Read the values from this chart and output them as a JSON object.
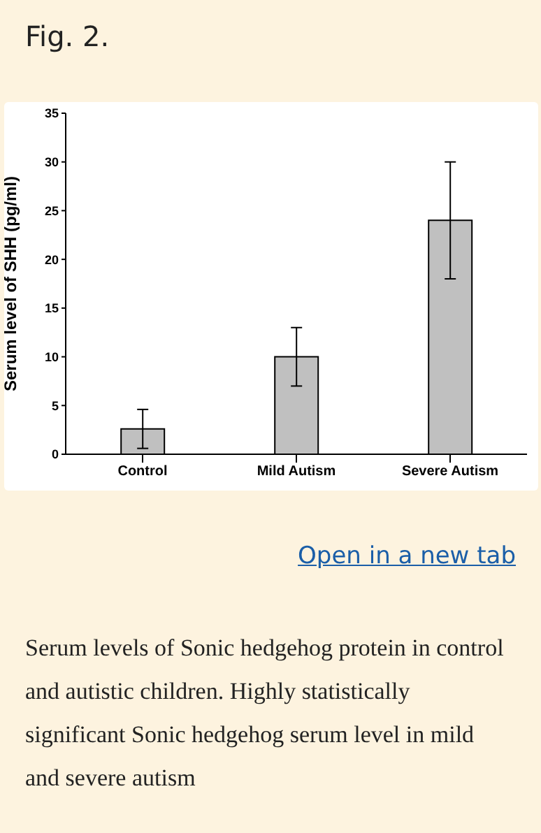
{
  "chart_data": {
    "type": "bar",
    "title": "Fig. 2.",
    "ylabel": "Serum level of SHH (pg/ml)",
    "categories": [
      "Control",
      "Mild Autism",
      "Severe Autism"
    ],
    "values": [
      2.6,
      10,
      24
    ],
    "errors": [
      [
        0.6,
        4.6
      ],
      [
        7,
        13
      ],
      [
        18,
        30
      ]
    ],
    "color": "#c0c0c0",
    "ylim": [
      0,
      35
    ],
    "yticks": [
      0,
      5,
      10,
      15,
      20,
      25,
      30,
      35
    ],
    "annotations": [
      "Open in a new tab",
      "Serum levels of Sonic hedgehog protein in control and autistic children. Highly statistically significant Sonic hedgehog serum level in mild and severe autism"
    ]
  }
}
